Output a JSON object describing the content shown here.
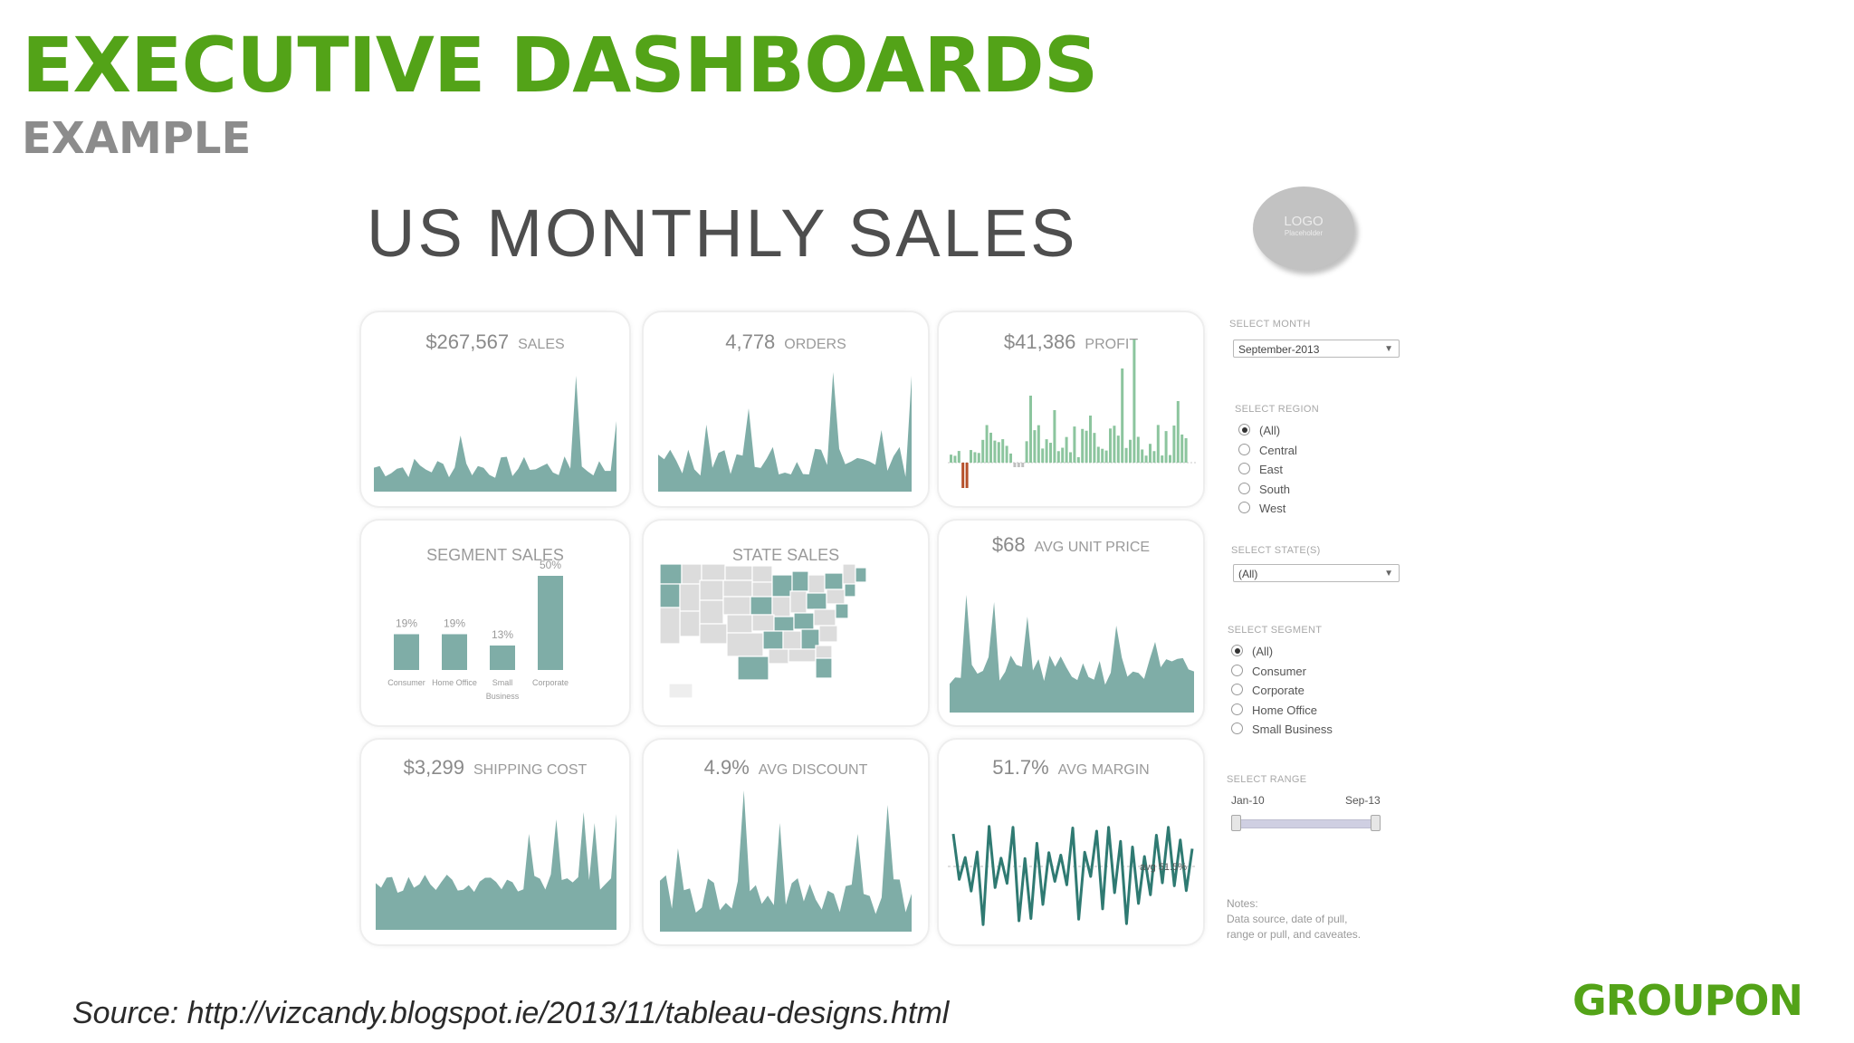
{
  "slide": {
    "title": "EXECUTIVE DASHBOARDS",
    "subtitle": "EXAMPLE",
    "source": "Source: http://vizcandy.blogspot.ie/2013/11/tableau-designs.html",
    "brand": "GROUPON",
    "brand_color": "#53a318"
  },
  "dashboard": {
    "title": "US MONTHLY SALES",
    "logo": {
      "label": "LOGO",
      "sub": "Placeholder"
    },
    "chart_color": "#7fada7",
    "kpis": {
      "sales": {
        "value": "$267,567",
        "label": "SALES"
      },
      "orders": {
        "value": "4,778",
        "label": "ORDERS"
      },
      "profit": {
        "value": "$41,386",
        "label": "PROFIT"
      },
      "avg_unit_price": {
        "value": "$68",
        "label": "AVG UNIT PRICE"
      },
      "shipping_cost": {
        "value": "$3,299",
        "label": "SHIPPING COST"
      },
      "avg_discount": {
        "value": "4.9%",
        "label": "AVG DISCOUNT"
      },
      "avg_margin": {
        "value": "51.7%",
        "label": "AVG MARGIN",
        "ref_label": "avg 51.5%"
      }
    },
    "segment_sales": {
      "title": "SEGMENT SALES",
      "bars": [
        {
          "label": "Consumer",
          "value": 19,
          "display": "19%"
        },
        {
          "label": "Home Office",
          "value": 19,
          "display": "19%"
        },
        {
          "label": "Small Business",
          "value": 13,
          "display": "13%"
        },
        {
          "label": "Corporate",
          "value": 50,
          "display": "50%"
        }
      ]
    },
    "state_sales": {
      "title": "STATE SALES"
    }
  },
  "filters": {
    "month": {
      "label": "SELECT MONTH",
      "value": "September-2013"
    },
    "region": {
      "label": "SELECT REGION",
      "options": [
        "(All)",
        "Central",
        "East",
        "South",
        "West"
      ],
      "selected": 0
    },
    "states": {
      "label": "SELECT STATE(S)",
      "value": "(All)"
    },
    "segment": {
      "label": "SELECT SEGMENT",
      "options": [
        "(All)",
        "Consumer",
        "Corporate",
        "Home Office",
        "Small Business"
      ],
      "selected": 0
    },
    "range": {
      "label": "SELECT RANGE",
      "start": "Jan-10",
      "end": "Sep-13"
    },
    "notes": {
      "title": "Notes:",
      "line1": "Data source, date of pull,",
      "line2": "range or pull, and caveates."
    }
  }
}
